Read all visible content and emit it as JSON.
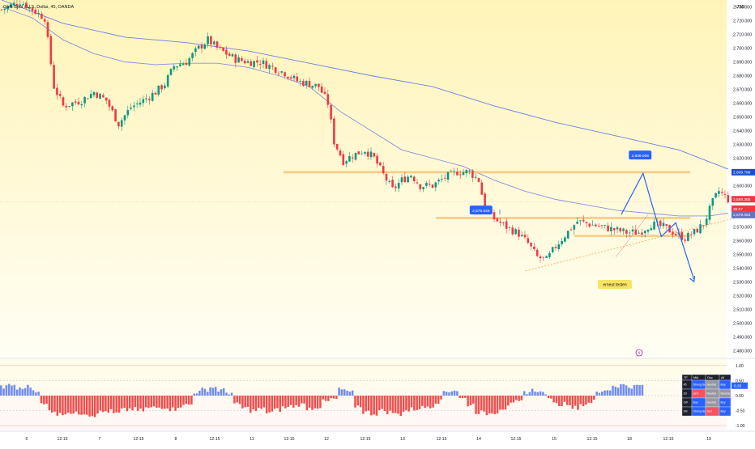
{
  "header": {
    "symbol_text": "Gold Spot / U.S. Dollar, 45, OANDA"
  },
  "currency_label": "USD",
  "chart_data": {
    "type": "candlestick",
    "title": "Gold Spot / U.S. Dollar, 45, OANDA",
    "ylim": [
      2475,
      2735
    ],
    "y_ticks": [
      2480,
      2490,
      2500,
      2510,
      2520,
      2530,
      2540,
      2550,
      2560,
      2570,
      2580,
      2590,
      2600,
      2610,
      2620,
      2630,
      2640,
      2650,
      2660,
      2670,
      2680,
      2690,
      2700,
      2710,
      2720,
      2730
    ],
    "y_tick_labels": [
      "2,480.000",
      "2,490.000",
      "2,500.000",
      "2,510.000",
      "2,520.000",
      "2,530.000",
      "2,540.000",
      "2,550.000",
      "2,560.000",
      "2,570.000",
      "2,580.000",
      "2,590.000",
      "2,600.000",
      "2,610.000",
      "2,620.000",
      "2,630.000",
      "2,640.000",
      "2,650.000",
      "2,660.000",
      "2,670.000",
      "2,680.000",
      "2,690.000",
      "2,700.000",
      "2,710.000",
      "2,720.000",
      "2,730.000"
    ],
    "x_tick_labels": [
      "6",
      "12:15",
      "7",
      "12:15",
      "8",
      "12:15",
      "11",
      "12:15",
      "12",
      "12:15",
      "13",
      "12:15",
      "14",
      "12:15",
      "15",
      "12:15",
      "18",
      "12:15",
      "19"
    ],
    "price_path": [
      [
        0,
        2728
      ],
      [
        6,
        2734
      ],
      [
        10,
        2728
      ],
      [
        14,
        2722
      ],
      [
        17,
        2672
      ],
      [
        20,
        2658
      ],
      [
        26,
        2662
      ],
      [
        30,
        2668
      ],
      [
        34,
        2662
      ],
      [
        38,
        2645
      ],
      [
        42,
        2657
      ],
      [
        46,
        2662
      ],
      [
        50,
        2668
      ],
      [
        53,
        2674
      ],
      [
        56,
        2687
      ],
      [
        60,
        2690
      ],
      [
        64,
        2700
      ],
      [
        67,
        2706
      ],
      [
        70,
        2700
      ],
      [
        73,
        2696
      ],
      [
        76,
        2692
      ],
      [
        80,
        2690
      ],
      [
        84,
        2690
      ],
      [
        88,
        2686
      ],
      [
        92,
        2682
      ],
      [
        96,
        2676
      ],
      [
        100,
        2674
      ],
      [
        103,
        2672
      ],
      [
        106,
        2660
      ],
      [
        108,
        2632
      ],
      [
        111,
        2618
      ],
      [
        114,
        2622
      ],
      [
        118,
        2626
      ],
      [
        121,
        2620
      ],
      [
        124,
        2608
      ],
      [
        127,
        2597
      ],
      [
        130,
        2604
      ],
      [
        133,
        2608
      ],
      [
        136,
        2600
      ],
      [
        140,
        2600
      ],
      [
        144,
        2606
      ],
      [
        148,
        2610
      ],
      [
        152,
        2610
      ],
      [
        155,
        2604
      ],
      [
        157,
        2584
      ],
      [
        160,
        2576
      ],
      [
        164,
        2570
      ],
      [
        168,
        2565
      ],
      [
        171,
        2558
      ],
      [
        174,
        2548
      ],
      [
        177,
        2546
      ],
      [
        180,
        2556
      ],
      [
        183,
        2564
      ],
      [
        187,
        2574
      ],
      [
        191,
        2572
      ],
      [
        195,
        2570
      ],
      [
        199,
        2568
      ],
      [
        203,
        2566
      ],
      [
        207,
        2566
      ],
      [
        211,
        2572
      ],
      [
        215,
        2570
      ],
      [
        219,
        2565
      ],
      [
        222,
        2562
      ],
      [
        225,
        2566
      ],
      [
        228,
        2572
      ],
      [
        231,
        2588
      ],
      [
        233,
        2596
      ],
      [
        236,
        2590
      ]
    ],
    "series": [
      {
        "name": "",
        "color": "#6d7fe8",
        "values": [
          [
            0,
            2735
          ],
          [
            20,
            2718
          ],
          [
            40,
            2708
          ],
          [
            60,
            2704
          ],
          [
            80,
            2698
          ],
          [
            100,
            2689
          ],
          [
            120,
            2680
          ],
          [
            140,
            2672
          ],
          [
            160,
            2658
          ],
          [
            180,
            2646
          ],
          [
            200,
            2636
          ],
          [
            220,
            2626
          ],
          [
            236,
            2612
          ]
        ]
      },
      {
        "name": "",
        "color": "#8a8fe0",
        "values": [
          [
            0,
            2730
          ],
          [
            10,
            2722
          ],
          [
            20,
            2706
          ],
          [
            30,
            2696
          ],
          [
            40,
            2690
          ],
          [
            50,
            2688
          ],
          [
            60,
            2689
          ],
          [
            70,
            2689
          ],
          [
            80,
            2686
          ],
          [
            90,
            2680
          ],
          [
            100,
            2672
          ],
          [
            110,
            2654
          ],
          [
            120,
            2640
          ],
          [
            130,
            2626
          ],
          [
            140,
            2620
          ],
          [
            150,
            2614
          ],
          [
            160,
            2604
          ],
          [
            170,
            2596
          ],
          [
            180,
            2590
          ],
          [
            190,
            2586
          ],
          [
            200,
            2582
          ],
          [
            210,
            2580
          ],
          [
            220,
            2578
          ],
          [
            230,
            2578
          ],
          [
            236,
            2580
          ]
        ]
      }
    ],
    "horizontal_levels": [
      {
        "price": 2609.796,
        "from": 0.39,
        "to": 0.95,
        "color": "#f5c77a"
      },
      {
        "price": 2576.5,
        "from": 0.6,
        "to": 0.95,
        "color": "#f5c77a"
      },
      {
        "price": 2563.5,
        "from": 0.79,
        "to": 0.95,
        "color": "#f5c77a"
      }
    ],
    "trendline": {
      "from": [
        186,
        2538
      ],
      "to": [
        236,
        2578
      ],
      "color": "#f0a040"
    },
    "projection_path": [
      [
        0.855,
        2579
      ],
      [
        0.885,
        2609
      ],
      [
        0.91,
        2563
      ],
      [
        0.93,
        2573
      ],
      [
        0.955,
        2532
      ]
    ],
    "callouts": [
      {
        "text": "2,576.549",
        "at": [
          0.662,
          2582
        ],
        "color": "#2962ff"
      },
      {
        "text": "2,609.009",
        "at": [
          0.881,
          2622
        ],
        "color": "#2962ff"
      }
    ],
    "note_label": {
      "text": "erneut testen",
      "color": "#f7e463"
    },
    "price_badges": [
      {
        "text": "2,609.796",
        "price": 2609.796,
        "color": "#1e4ec8"
      },
      {
        "text": "2,588.385",
        "price": 2588.385,
        "color": "#f23645"
      },
      {
        "text": "36:07",
        "price": 2585.0,
        "color": "#f23645"
      },
      {
        "text": "2,581.657",
        "price": 2581.657,
        "color": "#2962ff"
      },
      {
        "text": "2,579.063",
        "price": 2579.063,
        "color": "#6d6fbf"
      }
    ],
    "indicator": {
      "ylim": [
        -1.05,
        1.05
      ],
      "y_tick_labels": [
        "1.00",
        "0.50",
        "0.00",
        "-0.50",
        "-1.00"
      ],
      "y_ticks": [
        1.0,
        0.5,
        0.0,
        -0.5,
        -1.0
      ],
      "current_label": "0.33",
      "values": [
        0.28,
        0.35,
        0.22,
        0.3,
        0.18,
        -0.3,
        -0.5,
        -0.62,
        -0.55,
        -0.6,
        -0.58,
        -0.65,
        -0.55,
        -0.52,
        -0.6,
        -0.48,
        -0.45,
        -0.5,
        -0.42,
        -0.4,
        -0.38,
        -0.45,
        -0.35,
        -0.3,
        0.12,
        0.2,
        0.28,
        0.18,
        0.1,
        -0.3,
        -0.42,
        -0.5,
        -0.45,
        -0.55,
        -0.48,
        -0.4,
        -0.35,
        -0.3,
        -0.42,
        -0.38,
        -0.2,
        -0.12,
        0.2,
        0.1,
        -0.35,
        -0.55,
        -0.6,
        -0.5,
        -0.55,
        -0.62,
        -0.5,
        -0.45,
        -0.4,
        -0.35,
        -0.2,
        0.15,
        0.18,
        -0.1,
        -0.3,
        -0.55,
        -0.6,
        -0.55,
        -0.42,
        -0.3,
        -0.22,
        0.12,
        0.18,
        0.1,
        -0.15,
        -0.3,
        -0.25,
        -0.4,
        -0.3,
        -0.2,
        0.1,
        0.2,
        0.33,
        0.35,
        0.3,
        0.33
      ]
    },
    "table": {
      "headers": [
        "TF",
        "Mkt",
        "Osc",
        "All"
      ],
      "rows": [
        [
          "45",
          "Strong Buy",
          "Neutral",
          "Buy"
        ],
        [
          "1D",
          "Sell",
          "Neutral",
          "Neutral"
        ],
        [
          "1W",
          "Buy",
          "Neutral",
          "Buy"
        ],
        [
          "1M",
          "Strong Buy",
          "Sell",
          "Buy"
        ]
      ]
    }
  },
  "colors": {
    "up": "#089981",
    "down": "#f23645",
    "hist_up": "#6f8cf0",
    "hist_down": "#ef4f4f",
    "bg_top": "#fff6c2",
    "bg_bottom": "#ffffff",
    "grid": "#e8e8e8"
  },
  "icons": [
    "ideas-icon"
  ]
}
